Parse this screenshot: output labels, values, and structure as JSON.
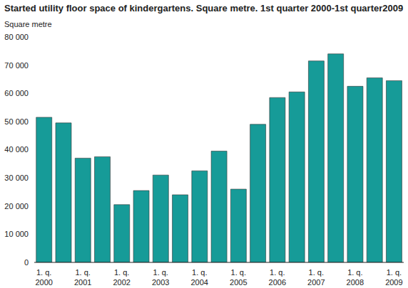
{
  "chart_data": {
    "type": "bar",
    "title": "Started utility floor space of kindergartens. Square metre. 1st quarter 2000-1st quarter2009",
    "y_label": "Square metre",
    "categories": [
      "1. q. 2000",
      null,
      "1. q. 2001",
      null,
      "1. q. 2002",
      null,
      "1. q. 2003",
      null,
      "1. q. 2004",
      null,
      "1. q. 2005",
      null,
      "1. q. 2006",
      null,
      "1. q. 2007",
      null,
      "1. q. 2008",
      null,
      "1. q. 2009"
    ],
    "values": [
      51500,
      49500,
      37000,
      37500,
      20500,
      25500,
      31000,
      24000,
      32500,
      39500,
      26000,
      49000,
      58500,
      60500,
      71500,
      74000,
      62500,
      65500,
      64500
    ],
    "color": "#169b98",
    "ylim": [
      0,
      80000
    ],
    "yticks": [
      0,
      {
        "value": 10000,
        "label": "10 000"
      },
      {
        "value": 20000,
        "label": "20 000"
      },
      {
        "value": 30000,
        "label": "30 000"
      },
      {
        "value": 40000,
        "label": "40 000"
      },
      {
        "value": 50000,
        "label": "50 000"
      },
      {
        "value": 60000,
        "label": "60 000"
      },
      {
        "value": 70000,
        "label": "70 000"
      },
      {
        "value": 80000,
        "label": "80 000"
      }
    ],
    "grid": false
  }
}
